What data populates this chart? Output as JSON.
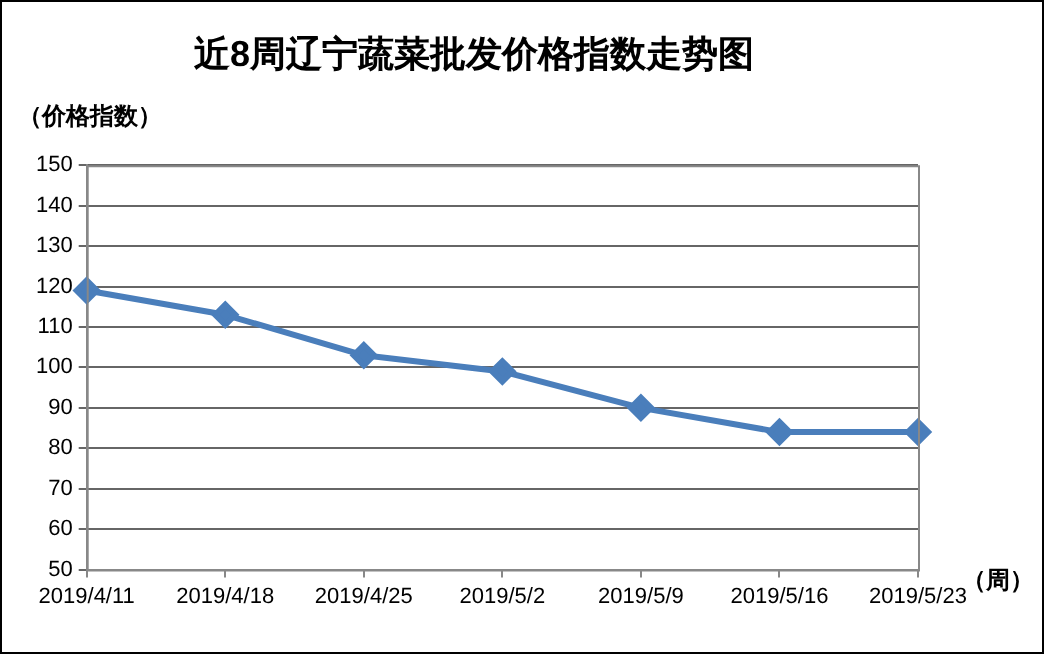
{
  "chart_data": {
    "type": "line",
    "title": "近8周辽宁蔬菜批发价格指数走势图",
    "ylabel": "（价格指数）",
    "xlabel": "（周）",
    "categories": [
      "2019/4/11",
      "2019/4/18",
      "2019/4/25",
      "2019/5/2",
      "2019/5/9",
      "2019/5/16",
      "2019/5/23"
    ],
    "series": [
      {
        "color": "#4a7ebb",
        "values": [
          119,
          113,
          103,
          99,
          90,
          84,
          84
        ]
      }
    ],
    "ylim": [
      50,
      150
    ],
    "yticks": [
      50,
      60,
      70,
      80,
      90,
      100,
      110,
      120,
      130,
      140,
      150
    ],
    "grid": "y",
    "legend": false,
    "marker": "diamond",
    "line_style": "solid"
  }
}
